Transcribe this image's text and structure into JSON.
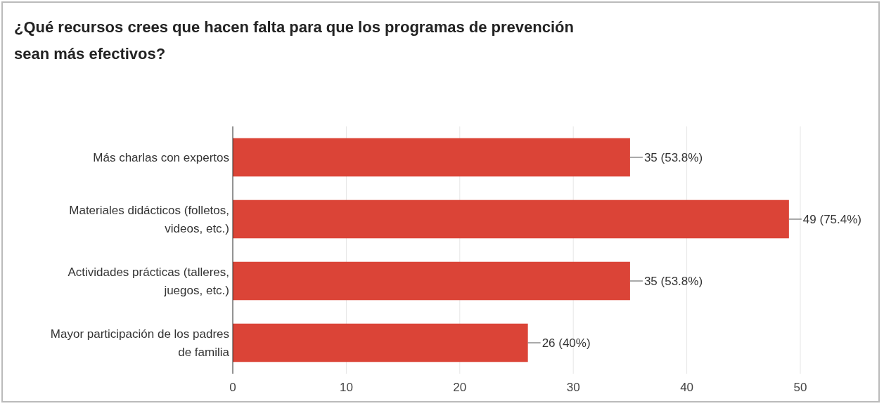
{
  "chart_data": {
    "type": "bar",
    "orientation": "horizontal",
    "title": "¿Qué recursos crees que hacen falta para que los programas de prevención sean más efectivos?",
    "categories": [
      "Más charlas con expertos",
      "Materiales didácticos (folletos, videos, etc.)",
      "Actividades prácticas (talleres, juegos, etc.)",
      "Mayor participación de los padres de familia"
    ],
    "values": [
      35,
      49,
      35,
      26
    ],
    "value_labels": [
      "35 (53.8%)",
      "49 (75.4%)",
      "35 (53.8%)",
      "26 (40%)"
    ],
    "color": "#db4437",
    "xlim": [
      0,
      50
    ],
    "xticks": [
      0,
      10,
      20,
      30,
      40,
      50
    ],
    "grid": "x"
  }
}
